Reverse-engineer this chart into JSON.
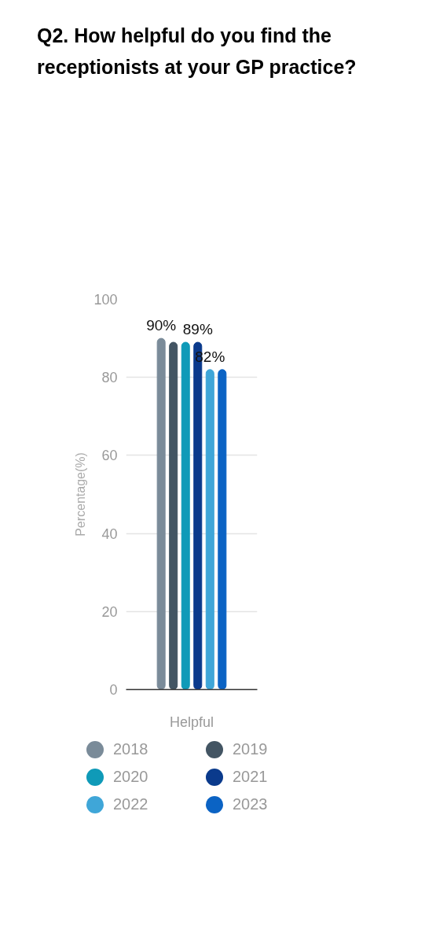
{
  "chart_data": {
    "type": "bar",
    "title": "Q2. How helpful do you find the receptionists at your GP practice?",
    "ylabel": "Percentage(%)",
    "categories": [
      "Helpful"
    ],
    "series": [
      {
        "name": "2018",
        "color": "#7a8b99",
        "values": [
          90
        ],
        "value_labels": [
          "90%"
        ]
      },
      {
        "name": "2019",
        "color": "#435563",
        "values": [
          89
        ],
        "value_labels": [
          null
        ]
      },
      {
        "name": "2020",
        "color": "#0f9ab8",
        "values": [
          89
        ],
        "value_labels": [
          null
        ]
      },
      {
        "name": "2021",
        "color": "#0a3a8c",
        "values": [
          89
        ],
        "value_labels": [
          "89%"
        ]
      },
      {
        "name": "2022",
        "color": "#3fa6d8",
        "values": [
          82
        ],
        "value_labels": [
          "82%"
        ]
      },
      {
        "name": "2023",
        "color": "#0b63c4",
        "values": [
          82
        ],
        "value_labels": [
          null
        ]
      }
    ],
    "ylim": [
      0,
      100
    ],
    "yticks": [
      0,
      20,
      40,
      60,
      80,
      100
    ],
    "grid": "y",
    "legend": "bottom"
  }
}
